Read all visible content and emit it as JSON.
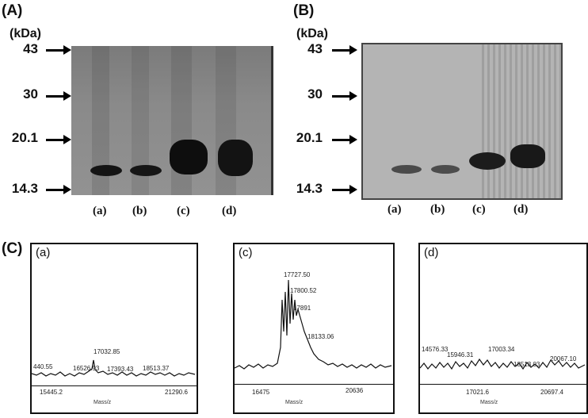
{
  "panels": {
    "a": "(A)",
    "b": "(B)",
    "c": "(C)"
  },
  "gels": {
    "unit": "(kDa)",
    "markers": [
      "43",
      "30",
      "20.1",
      "14.3"
    ],
    "lanes": [
      "(a)",
      "(b)",
      "(c)",
      "(d)"
    ]
  },
  "spectra": [
    {
      "label": "(a)",
      "peaks": [
        "440.55",
        "16526.93",
        "17032.85",
        "17393.43",
        "18513.37"
      ],
      "x_start": "15445.2",
      "x_end": "21290.6",
      "x_title": "Mass/z"
    },
    {
      "label": "(c)",
      "peaks": [
        "17727.50",
        "17800.52",
        "17891",
        "18133.06"
      ],
      "x_start": "16475",
      "x_end": "20636",
      "x_title": "Mass/z"
    },
    {
      "label": "(d)",
      "peaks": [
        "14576.33",
        "15946.31",
        "17003.34",
        "18513.03",
        "20067.10"
      ],
      "x_start": "17021.6",
      "x_end": "20697.4",
      "x_title": "Mass/z"
    }
  ]
}
